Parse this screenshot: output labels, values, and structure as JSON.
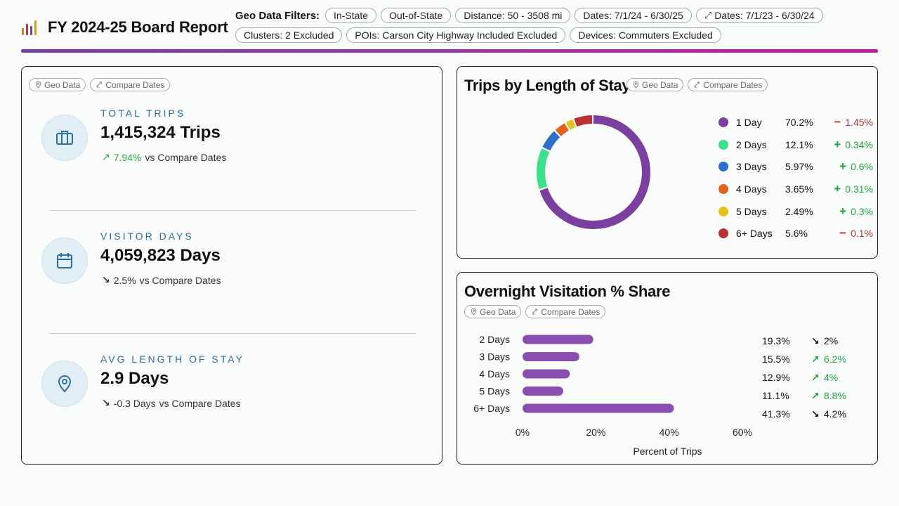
{
  "header": {
    "title": "FY 2024-25 Board Report",
    "logo_colors": [
      "#e07a20",
      "#c0392b",
      "#7b3fa0",
      "#d0a020"
    ],
    "filters_label": "Geo Data Filters:",
    "filters": [
      {
        "label": "In-State",
        "icon": ""
      },
      {
        "label": "Out-of-State",
        "icon": ""
      },
      {
        "label": "Distance: 50 - 3508 mi",
        "icon": ""
      },
      {
        "label": "Dates: 7/1/24 - 6/30/25",
        "icon": ""
      },
      {
        "label": "Dates: 7/1/23 - 6/30/24",
        "icon": "compare-icon"
      },
      {
        "label": "Clusters: 2 Excluded",
        "icon": ""
      },
      {
        "label": "POIs: Carson City Highway Included Excluded",
        "icon": ""
      },
      {
        "label": "Devices: Commuters Excluded",
        "icon": ""
      }
    ],
    "accent_gradient": [
      "#7b3fa0",
      "#c21aa0"
    ]
  },
  "chips": {
    "geo": "Geo Data",
    "compare": "Compare Dates"
  },
  "kpis": [
    {
      "label": "TOTAL TRIPS",
      "value": "1,415,324 Trips",
      "delta": "7.94%",
      "delta_dir": "up",
      "suffix": "vs Compare Dates",
      "icon": "briefcase-icon"
    },
    {
      "label": "VISITOR DAYS",
      "value": "4,059,823 Days",
      "delta": "2.5%",
      "delta_dir": "down",
      "suffix": "vs Compare Dates",
      "icon": "calendar-icon"
    },
    {
      "label": "AVG LENGTH OF STAY",
      "value": "2.9 Days",
      "delta": "-0.3 Days",
      "delta_dir": "down",
      "suffix": "vs Compare Dates",
      "icon": "location-pin-icon"
    }
  ],
  "donut": {
    "title": "Trips by Length of Stay",
    "items": [
      {
        "name": "1 Day",
        "pct": "70.2%",
        "sign": "−",
        "delta": "1.45%",
        "dir": "down",
        "color": "#7b3fa0"
      },
      {
        "name": "2 Days",
        "pct": "12.1%",
        "sign": "+",
        "delta": "0.34%",
        "dir": "up",
        "color": "#3de08a"
      },
      {
        "name": "3 Days",
        "pct": "5.97%",
        "sign": "+",
        "delta": "0.6%",
        "dir": "up",
        "color": "#2e6fc7"
      },
      {
        "name": "4 Days",
        "pct": "3.65%",
        "sign": "+",
        "delta": "0.31%",
        "dir": "up",
        "color": "#e0621e"
      },
      {
        "name": "5 Days",
        "pct": "2.49%",
        "sign": "+",
        "delta": "0.3%",
        "dir": "up",
        "color": "#e8c01a"
      },
      {
        "name": "6+ Days",
        "pct": "5.6%",
        "sign": "−",
        "delta": "0.1%",
        "dir": "down",
        "color": "#b83232"
      }
    ]
  },
  "chart_data": {
    "type": "bar",
    "orientation": "horizontal",
    "title": "Overnight Visitation % Share",
    "categories": [
      "2 Days",
      "3 Days",
      "4 Days",
      "5 Days",
      "6+ Days"
    ],
    "values": [
      19.3,
      15.5,
      12.9,
      11.1,
      41.3
    ],
    "value_labels": [
      "19.3%",
      "15.5%",
      "12.9%",
      "11.1%",
      "41.3%"
    ],
    "deltas": [
      "2%",
      "6.2%",
      "4%",
      "8.8%",
      "4.2%"
    ],
    "delta_dirs": [
      "down",
      "up",
      "up",
      "up",
      "down"
    ],
    "xlabel": "Percent of Trips",
    "xlim": [
      0,
      60
    ],
    "xticks": [
      "0%",
      "20%",
      "40%",
      "60%"
    ],
    "bar_color": "#8a4db0"
  }
}
